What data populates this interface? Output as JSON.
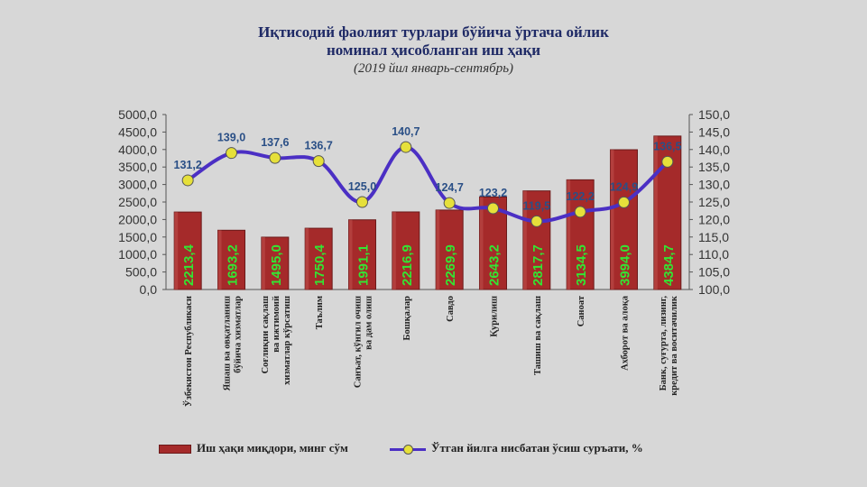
{
  "chart_data": {
    "type": "bar",
    "title_lines": [
      "Иқтисодий фаолият турлари бўйича ўртача ойлик",
      "номинал ҳисобланган иш ҳақи"
    ],
    "subtitle": "(2019 йил январь-сентябрь)",
    "categories": [
      [
        "Ўзбекистон Республикаси"
      ],
      [
        "Яшаш ва овқатланиш",
        "бўйича хизматлар"
      ],
      [
        "Соғлиқни сақлаш",
        "ва ижтимоий",
        "хизматлар кўрсатиш"
      ],
      [
        "Таълим"
      ],
      [
        "Санъат, кўнгил очиш",
        "ва дам олиш"
      ],
      [
        "Бошқалар"
      ],
      [
        "Савдо"
      ],
      [
        "Қурилиш"
      ],
      [
        "Ташиш ва сақлаш"
      ],
      [
        "Саноат"
      ],
      [
        "Ахборот ва алоқа"
      ],
      [
        "Банк, суғурта, лизинг,",
        "кредит ва воситачилик"
      ]
    ],
    "bar_labels": [
      "2213,4",
      "1693,2",
      "1495,0",
      "1750,4",
      "1991,1",
      "2216,9",
      "2269,9",
      "2643,2",
      "2817,7",
      "3134,5",
      "3994,0",
      "4384,7"
    ],
    "line_labels": [
      "131,2",
      "139,0",
      "137,6",
      "136,7",
      "125,0",
      "140,7",
      "124,7",
      "123,2",
      "119,5",
      "122,2",
      "124,9",
      "136,5"
    ],
    "series": [
      {
        "name": "Иш ҳақи миқдори, минг сўм",
        "axis": "left",
        "type": "bar",
        "values": [
          2213.4,
          1693.2,
          1495.0,
          1750.4,
          1991.1,
          2216.9,
          2269.9,
          2643.2,
          2817.7,
          3134.5,
          3994.0,
          4384.7
        ]
      },
      {
        "name": "Ўтган йилга нисбатан ўсиш суръати,  %",
        "axis": "right",
        "type": "line",
        "values": [
          131.2,
          139.0,
          137.6,
          136.7,
          125.0,
          140.7,
          124.7,
          123.2,
          119.5,
          122.2,
          124.9,
          136.5
        ]
      }
    ],
    "left_axis": {
      "ylim": [
        0,
        5000
      ],
      "tick_values": [
        0,
        500,
        1000,
        1500,
        2000,
        2500,
        3000,
        3500,
        4000,
        4500,
        5000
      ],
      "tick_labels": [
        "0,0",
        "500,0",
        "1000,0",
        "1500,0",
        "2000,0",
        "2500,0",
        "3000,0",
        "3500,0",
        "4000,0",
        "4500,0",
        "5000,0"
      ]
    },
    "right_axis": {
      "ylim": [
        100,
        150
      ],
      "tick_values": [
        100,
        105,
        110,
        115,
        120,
        125,
        130,
        135,
        140,
        145,
        150
      ],
      "tick_labels": [
        "100,0",
        "105,0",
        "110,0",
        "115,0",
        "120,0",
        "125,0",
        "130,0",
        "135,0",
        "140,0",
        "145,0",
        "150,0"
      ]
    },
    "grid": false,
    "legend_position": "bottom",
    "colors": {
      "bar": "#a52a2a",
      "bar_dark": "#6b1a1a",
      "line": "#4b2fc4",
      "marker": "#e6e03a",
      "bar_label": "#33e533",
      "line_label": "#2a4f86"
    }
  }
}
